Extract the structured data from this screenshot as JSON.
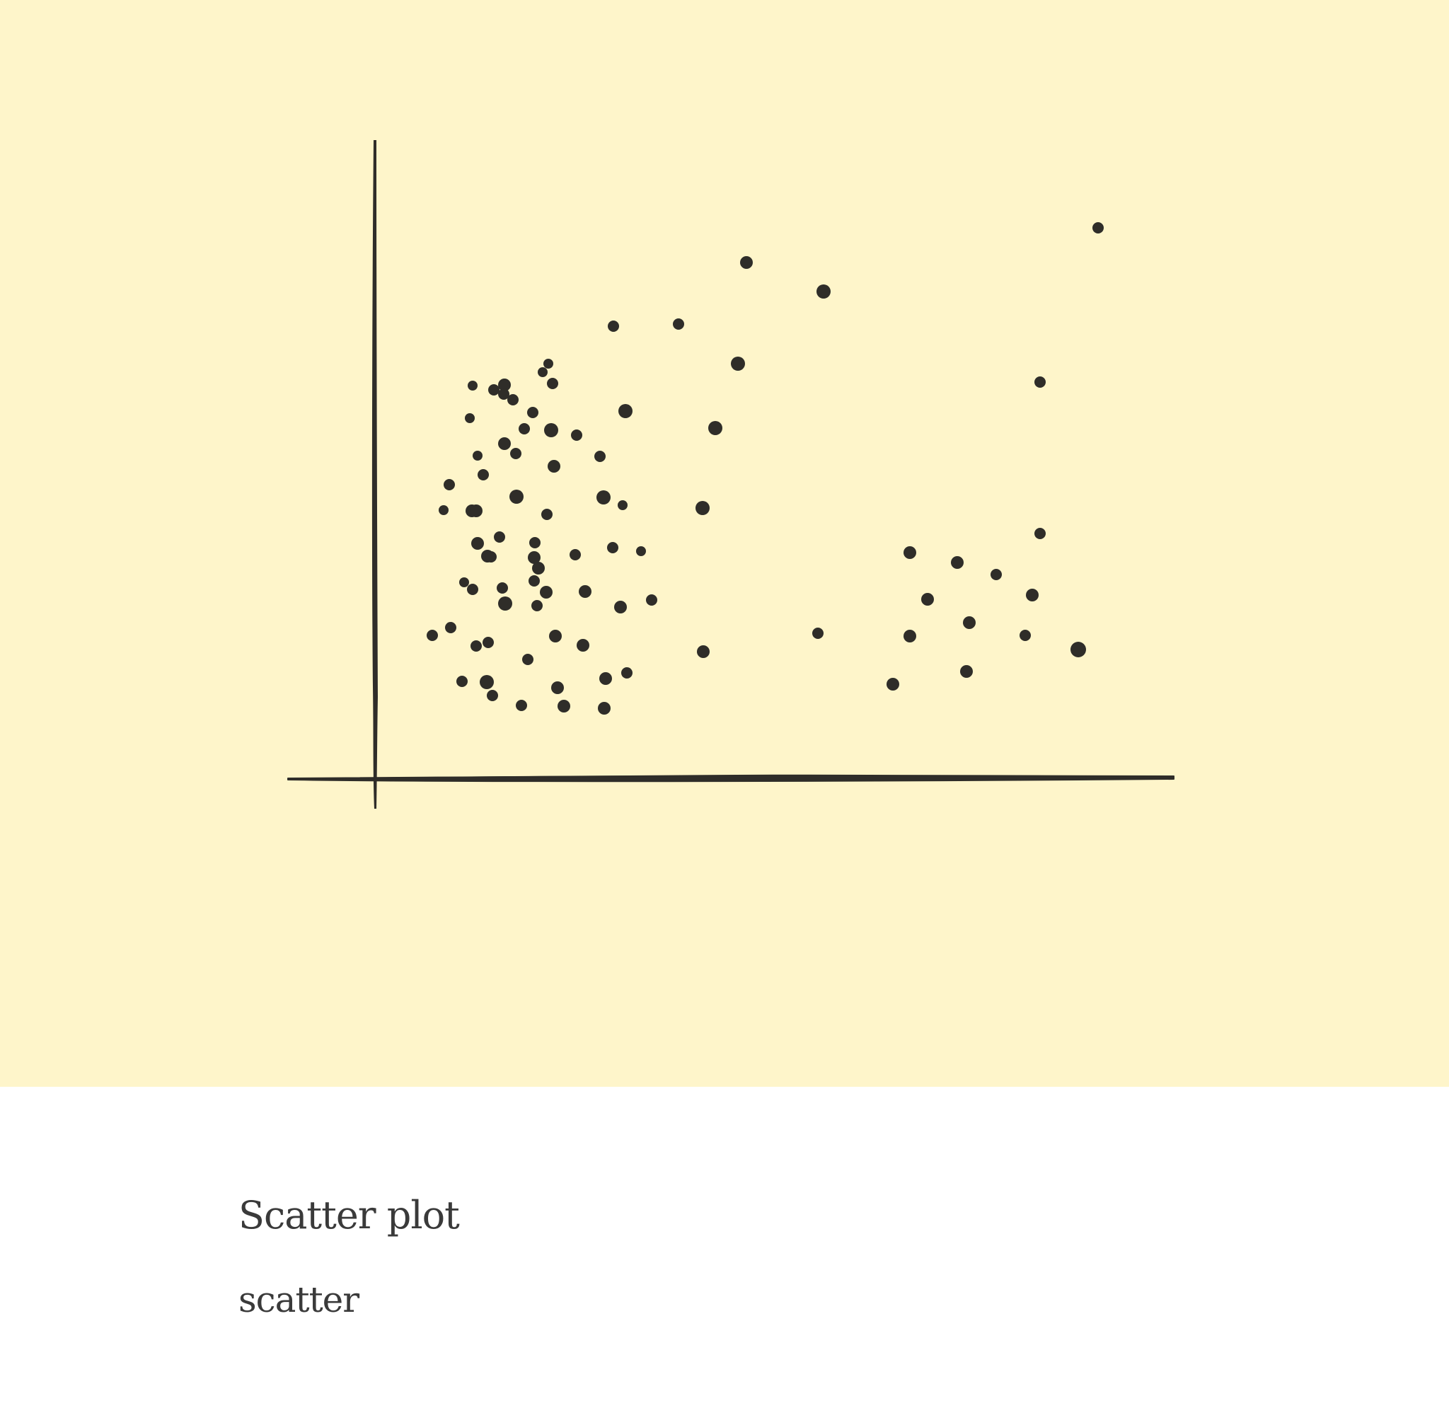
{
  "illustration": {
    "icon": "scatter-plot-illustration",
    "background_color": "#fef5ca",
    "ink_color": "#2f2d29"
  },
  "caption": {
    "title": "Scatter plot",
    "subtitle": "scatter",
    "text_color": "#3a3a3a"
  }
}
